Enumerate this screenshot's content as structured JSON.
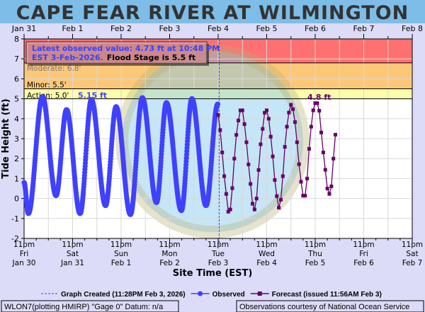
{
  "title": "CAPE FEAR RIVER AT WILMINGTON",
  "info_box": {
    "observed_text": "Latest observed value: 4.73 ft at 10:48 PM",
    "observed_text2": "EST 3-Feb-2026.",
    "flood_text": "Flood Stage is 5.5 ft"
  },
  "colors": {
    "title_bg": "#7dbde8",
    "major": "#ff7070",
    "moderate": "#fcc878",
    "action": "#fcfcaa",
    "observed": "#4040ff",
    "forecast": "#660066",
    "page_bg": "#dcdcf8"
  },
  "chart_data": {
    "type": "line",
    "title": "CAPE FEAR RIVER AT WILMINGTON",
    "xlabel": "Site Time (EST)",
    "ylabel": "Tide Height (ft)",
    "ylim": [
      -2,
      8
    ],
    "xlim_hours": [
      0,
      192
    ],
    "x_origin": "11pm Fri Jan 30",
    "yticks": [
      "-2",
      "-1",
      "0",
      "1",
      "2",
      "3",
      "4",
      "5",
      "6",
      "7",
      "8"
    ],
    "top_ticks": [
      "Jan 31",
      "Feb 1",
      "Feb 2",
      "Feb 3",
      "Feb 4",
      "Feb 5",
      "Feb 6",
      "Feb 7",
      "Feb 8"
    ],
    "bottom_ticks": [
      [
        "11pm",
        "Fri",
        "Jan 30"
      ],
      [
        "11pm",
        "Sat",
        "Jan 31"
      ],
      [
        "11pm",
        "Sun",
        "Feb 1"
      ],
      [
        "11pm",
        "Mon",
        "Feb 2"
      ],
      [
        "11pm",
        "Tue",
        "Feb 3"
      ],
      [
        "11pm",
        "Wed",
        "Feb 4"
      ],
      [
        "11pm",
        "Thu",
        "Feb 5"
      ],
      [
        "11pm",
        "Fri",
        "Feb 6"
      ],
      [
        "11pm",
        "Sat",
        "Feb 7"
      ]
    ],
    "thresholds": [
      {
        "label": "Moderate: 6.8'",
        "value": 6.8
      },
      {
        "label": "Minor: 5.5'",
        "value": 5.5
      },
      {
        "label": "Action: 5.0'",
        "value": 5.0
      }
    ],
    "annotations": {
      "observed_peak": "5.15 ft",
      "forecast_peak": "4.8 ft"
    },
    "graph_created_hour": 96.5,
    "series": [
      {
        "name": "Observed",
        "note": "tidal extremes (hours since 11pm Jan 30, ft)",
        "points": [
          [
            0,
            0.8
          ],
          [
            2.1,
            -0.75
          ],
          [
            9.1,
            5.1
          ],
          [
            15.8,
            0.15
          ],
          [
            21.0,
            4.45
          ],
          [
            27.7,
            -0.75
          ],
          [
            33.3,
            4.95
          ],
          [
            40.3,
            -0.35
          ],
          [
            45.5,
            4.6
          ],
          [
            52.6,
            -0.8
          ],
          [
            58.5,
            5.05
          ],
          [
            65.5,
            -0.2
          ],
          [
            70.4,
            4.8
          ],
          [
            77.8,
            -0.6
          ],
          [
            83.0,
            5.0
          ],
          [
            90.0,
            -0.35
          ],
          [
            95.8,
            4.73
          ]
        ]
      },
      {
        "name": "Forecast",
        "start_hour": 96,
        "step_hours": 1,
        "values": [
          4.19,
          3.43,
          2.31,
          1.12,
          0.23,
          -0.66,
          -0.55,
          0.52,
          2.0,
          3.19,
          3.91,
          4.42,
          4.42,
          3.73,
          2.82,
          1.71,
          0.73,
          -0.26,
          -0.55,
          0.0,
          1.43,
          2.72,
          3.49,
          4.3,
          4.42,
          4.0,
          3.1,
          2.11,
          0.93,
          0.12,
          -0.46,
          -0.06,
          1.12,
          2.59,
          3.6,
          4.31,
          4.7,
          4.48,
          3.83,
          2.82,
          1.72,
          0.84,
          0.14,
          0.14,
          1.0,
          2.49,
          3.6,
          4.42,
          4.78,
          4.78,
          4.4,
          3.31,
          2.31,
          1.44,
          0.5,
          0.23,
          0.61,
          2.0,
          3.2
        ]
      }
    ],
    "legend": {
      "position": "bottom",
      "created": "Graph Created (11:28PM Feb 3, 2026)",
      "observed": "Observed",
      "forecast": "Forecast (issued 11:56AM Feb 3)"
    }
  },
  "footer": {
    "left": "WLON7(plotting HMIRP) \"Gage 0\" Datum: n/a",
    "right": "Observations courtesy of National Ocean Service"
  }
}
